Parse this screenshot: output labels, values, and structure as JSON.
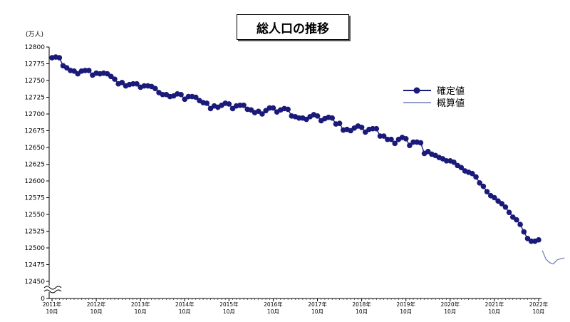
{
  "chart_data": {
    "type": "line",
    "title": "総人口の推移",
    "ylabel": "(万人)",
    "ylim": [
      12450,
      12800
    ],
    "y_ticks": [
      "12800",
      "12775",
      "12750",
      "12725",
      "12700",
      "12675",
      "12650",
      "12625",
      "12600",
      "12575",
      "12550",
      "12525",
      "12500",
      "12475",
      "12450",
      "0"
    ],
    "axis_break": true,
    "grid": false,
    "legend_position": "right",
    "x_tick_labels": [
      {
        "year": "2011年",
        "month": "10月"
      },
      {
        "year": "2012年",
        "month": "10月"
      },
      {
        "year": "2013年",
        "month": "10月"
      },
      {
        "year": "2014年",
        "month": "10月"
      },
      {
        "year": "2015年",
        "month": "10月"
      },
      {
        "year": "2016年",
        "month": "10月"
      },
      {
        "year": "2017年",
        "month": "10月"
      },
      {
        "year": "2018年",
        "month": "10月"
      },
      {
        "year": "2019年",
        "month": "10月"
      },
      {
        "year": "2020年",
        "month": "10月"
      },
      {
        "year": "2021年",
        "month": "10月"
      },
      {
        "year": "2022年",
        "month": "10月"
      }
    ],
    "x_start": "2011-10",
    "series": [
      {
        "name": "確定値",
        "color": "#1a1a7a",
        "marker": "circle",
        "values": [
          12784,
          12785,
          12784,
          12772,
          12769,
          12765,
          12764,
          12760,
          12764,
          12765,
          12765,
          12758,
          12761,
          12760,
          12761,
          12760,
          12756,
          12752,
          12745,
          12747,
          12742,
          12744,
          12745,
          12745,
          12740,
          12742,
          12742,
          12741,
          12738,
          12732,
          12729,
          12729,
          12726,
          12727,
          12730,
          12729,
          12722,
          12726,
          12726,
          12725,
          12720,
          12717,
          12716,
          12708,
          12712,
          12710,
          12713,
          12716,
          12715,
          12708,
          12712,
          12713,
          12713,
          12707,
          12706,
          12702,
          12704,
          12700,
          12705,
          12709,
          12709,
          12703,
          12706,
          12708,
          12707,
          12697,
          12696,
          12694,
          12694,
          12692,
          12696,
          12699,
          12697,
          12690,
          12693,
          12695,
          12694,
          12685,
          12686,
          12676,
          12677,
          12675,
          12679,
          12682,
          12680,
          12673,
          12677,
          12678,
          12678,
          12667,
          12667,
          12662,
          12662,
          12656,
          12662,
          12665,
          12663,
          12653,
          12658,
          12658,
          12657,
          12641,
          12644,
          12640,
          12638,
          12635,
          12633,
          12630,
          12630,
          12628,
          12623,
          12620,
          12615,
          12613,
          12611,
          12606,
          12597,
          12592,
          12584,
          12578,
          12575,
          12570,
          12566,
          12561,
          12553,
          12546,
          12542,
          12535,
          12524,
          12514,
          12510,
          12510,
          12512
        ]
      },
      {
        "name": "概算値",
        "color": "#6b7fb8",
        "marker": "none",
        "x_offset": 133,
        "values": [
          12496,
          12483,
          12478,
          12476,
          12482,
          12484,
          12485
        ]
      }
    ]
  }
}
